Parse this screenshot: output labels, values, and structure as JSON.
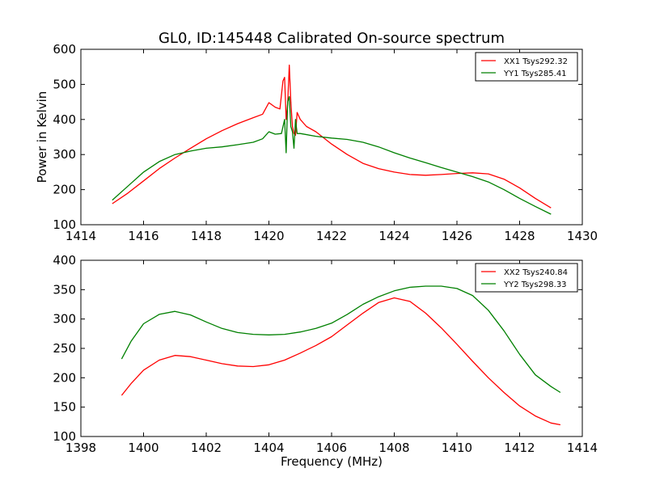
{
  "chart_data": {
    "title": "GL0, ID:145448 Calibrated On-source spectrum",
    "xlabel": "Frequency (MHz)",
    "panels": [
      {
        "type": "line",
        "ylabel": "Power in Kelvin",
        "xlim": [
          1414,
          1430
        ],
        "ylim": [
          100,
          600
        ],
        "xticks": [
          1414,
          1416,
          1418,
          1420,
          1422,
          1424,
          1426,
          1428,
          1430
        ],
        "yticks": [
          100,
          200,
          300,
          400,
          500,
          600
        ],
        "legend_position": "top-right",
        "series": [
          {
            "name": "XX1 Tsys292.32",
            "color": "#ff0000",
            "x": [
              1415.0,
              1415.5,
              1416.0,
              1416.5,
              1417.0,
              1417.5,
              1418.0,
              1418.5,
              1419.0,
              1419.5,
              1419.8,
              1420.0,
              1420.2,
              1420.35,
              1420.45,
              1420.5,
              1420.55,
              1420.6,
              1420.65,
              1420.7,
              1420.75,
              1420.8,
              1420.85,
              1420.9,
              1421.0,
              1421.2,
              1421.5,
              1422.0,
              1422.5,
              1423.0,
              1423.5,
              1424.0,
              1424.5,
              1425.0,
              1425.5,
              1426.0,
              1426.5,
              1427.0,
              1427.5,
              1428.0,
              1428.5,
              1429.0
            ],
            "y": [
              160,
              190,
              225,
              260,
              290,
              318,
              345,
              368,
              388,
              405,
              415,
              448,
              435,
              430,
              510,
              520,
              400,
              445,
              555,
              450,
              380,
              360,
              355,
              420,
              400,
              380,
              365,
              330,
              300,
              275,
              260,
              250,
              243,
              241,
              243,
              246,
              248,
              245,
              230,
              205,
              175,
              148
            ]
          },
          {
            "name": "YY1 Tsys285.41",
            "color": "#008000",
            "x": [
              1415.0,
              1415.5,
              1416.0,
              1416.5,
              1417.0,
              1417.5,
              1418.0,
              1418.5,
              1419.0,
              1419.5,
              1419.8,
              1420.0,
              1420.2,
              1420.4,
              1420.5,
              1420.55,
              1420.6,
              1420.65,
              1420.7,
              1420.75,
              1420.8,
              1420.85,
              1420.9,
              1421.0,
              1421.5,
              1422.0,
              1422.5,
              1423.0,
              1423.5,
              1424.0,
              1424.5,
              1425.0,
              1425.5,
              1426.0,
              1426.5,
              1427.0,
              1427.5,
              1428.0,
              1428.5,
              1429.0
            ],
            "y": [
              170,
              210,
              250,
              280,
              300,
              310,
              318,
              322,
              328,
              335,
              345,
              365,
              358,
              360,
              400,
              305,
              450,
              465,
              380,
              365,
              318,
              400,
              360,
              360,
              352,
              347,
              343,
              335,
              322,
              305,
              290,
              277,
              263,
              250,
              237,
              222,
              200,
              175,
              152,
              130
            ]
          }
        ]
      },
      {
        "type": "line",
        "ylabel": "",
        "xlim": [
          1398,
          1414
        ],
        "ylim": [
          100,
          400
        ],
        "xticks": [
          1398,
          1400,
          1402,
          1404,
          1406,
          1408,
          1410,
          1412,
          1414
        ],
        "yticks": [
          100,
          150,
          200,
          250,
          300,
          350,
          400
        ],
        "legend_position": "top-right",
        "series": [
          {
            "name": "XX2 Tsys240.84",
            "color": "#ff0000",
            "x": [
              1399.3,
              1399.6,
              1400.0,
              1400.5,
              1401.0,
              1401.5,
              1402.0,
              1402.5,
              1403.0,
              1403.5,
              1404.0,
              1404.5,
              1405.0,
              1405.5,
              1406.0,
              1406.5,
              1407.0,
              1407.5,
              1408.0,
              1408.5,
              1409.0,
              1409.5,
              1410.0,
              1410.5,
              1411.0,
              1411.5,
              1412.0,
              1412.5,
              1413.0,
              1413.3
            ],
            "y": [
              170,
              190,
              213,
              230,
              238,
              236,
              230,
              224,
              220,
              219,
              222,
              230,
              242,
              255,
              270,
              290,
              310,
              328,
              336,
              330,
              310,
              285,
              257,
              228,
              200,
              175,
              152,
              135,
              123,
              120
            ]
          },
          {
            "name": "YY2 Tsys298.33",
            "color": "#008000",
            "x": [
              1399.3,
              1399.6,
              1400.0,
              1400.5,
              1401.0,
              1401.5,
              1402.0,
              1402.5,
              1403.0,
              1403.5,
              1404.0,
              1404.5,
              1405.0,
              1405.5,
              1406.0,
              1406.5,
              1407.0,
              1407.5,
              1408.0,
              1408.5,
              1409.0,
              1409.5,
              1410.0,
              1410.5,
              1411.0,
              1411.5,
              1412.0,
              1412.5,
              1413.0,
              1413.3
            ],
            "y": [
              232,
              262,
              292,
              308,
              313,
              307,
              295,
              284,
              277,
              274,
              273,
              274,
              278,
              284,
              293,
              308,
              325,
              338,
              348,
              354,
              356,
              356,
              352,
              340,
              315,
              280,
              240,
              205,
              185,
              175
            ]
          }
        ]
      }
    ]
  }
}
